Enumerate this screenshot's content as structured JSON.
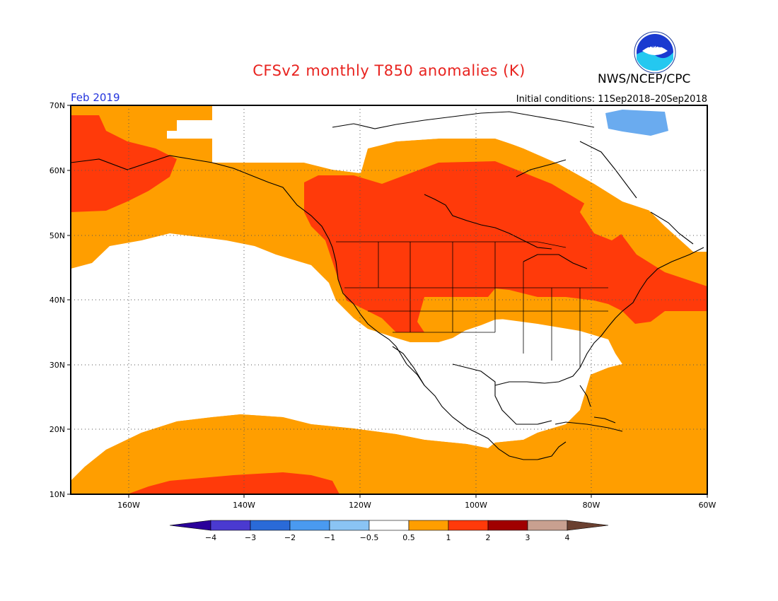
{
  "title": "CFSv2 monthly T850 anomalies (K)",
  "agency": "NWS/NCEP/CPC",
  "logo_text": "NOAA",
  "valid_month": "Feb 2019",
  "initial_conditions": "Initial conditions: 11Sep2018–20Sep2018",
  "lat_labels": [
    "70N",
    "60N",
    "50N",
    "40N",
    "30N",
    "20N",
    "10N"
  ],
  "lon_labels": [
    "160W",
    "140W",
    "120W",
    "100W",
    "80W",
    "60W"
  ],
  "colorbar": {
    "labels": [
      "−4",
      "−3",
      "−2",
      "−1",
      "−0.5",
      "0.5",
      "1",
      "2",
      "3",
      "4"
    ],
    "colors": [
      "#2a009a",
      "#4a3ad0",
      "#2a6ad8",
      "#4a9af0",
      "#8ac4f4",
      "#ffffff",
      "#ff9e00",
      "#ff3a0a",
      "#a00000",
      "#c8a090",
      "#6a4030"
    ]
  },
  "anomaly_colors": {
    "cold_weak": "#6aabef",
    "warm_weak": "#ff9e00",
    "warm_mid": "#ff3a0a"
  }
}
